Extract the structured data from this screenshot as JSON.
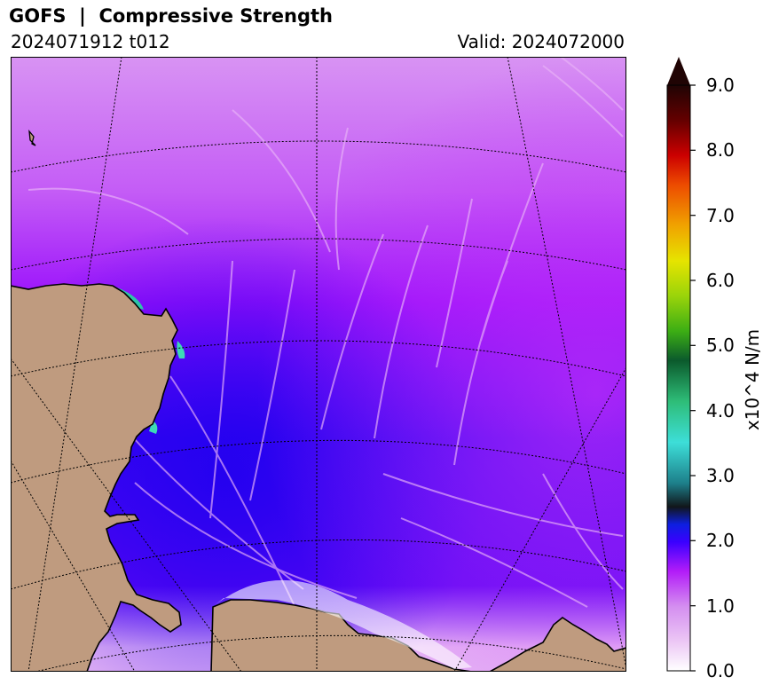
{
  "header": {
    "title": "GOFS  |  Compressive Strength",
    "run": "2024071912 t012",
    "valid": "Valid: 2024072000"
  },
  "colorbar": {
    "label": "x10^4 N/m",
    "ticks": [
      "0.0",
      "1.0",
      "2.0",
      "3.0",
      "4.0",
      "5.0",
      "6.0",
      "7.0",
      "8.0",
      "9.0"
    ],
    "extend": "max"
  },
  "colors": {
    "land": "#bf9b7f",
    "ice_high": "#d792f2",
    "ice_mid": "#b100ff",
    "ice_low": "#2a00f5",
    "gridline": "#000000"
  }
}
